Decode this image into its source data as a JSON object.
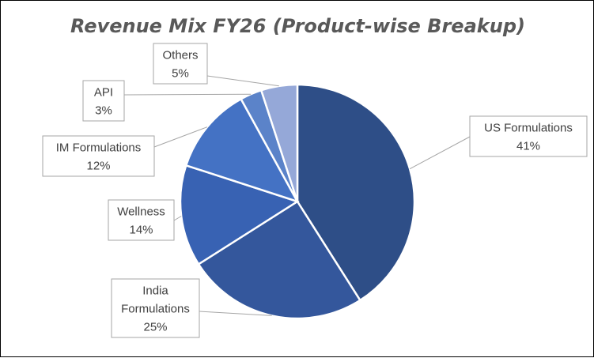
{
  "chart_data": {
    "type": "pie",
    "title": "Revenue Mix FY26 (Product-wise Breakup)",
    "start_angle_deg": 0,
    "direction": "clockwise",
    "legend": "none",
    "slices": [
      {
        "name": "US Formulations",
        "label_lines": [
          "US Formulations"
        ],
        "value": 41,
        "value_label": "41%",
        "color": "#2e4e87"
      },
      {
        "name": "India Formulations",
        "label_lines": [
          "India",
          "Formulations"
        ],
        "value": 25,
        "value_label": "25%",
        "color": "#34579c"
      },
      {
        "name": "Wellness",
        "label_lines": [
          "Wellness"
        ],
        "value": 14,
        "value_label": "14%",
        "color": "#3862b3"
      },
      {
        "name": "IM Formulations",
        "label_lines": [
          "IM Formulations"
        ],
        "value": 12,
        "value_label": "12%",
        "color": "#4472c4"
      },
      {
        "name": "API",
        "label_lines": [
          "API"
        ],
        "value": 3,
        "value_label": "3%",
        "color": "#5b83c9"
      },
      {
        "name": "Others",
        "label_lines": [
          "Others"
        ],
        "value": 5,
        "value_label": "5%",
        "color": "#95a8d8"
      }
    ]
  }
}
